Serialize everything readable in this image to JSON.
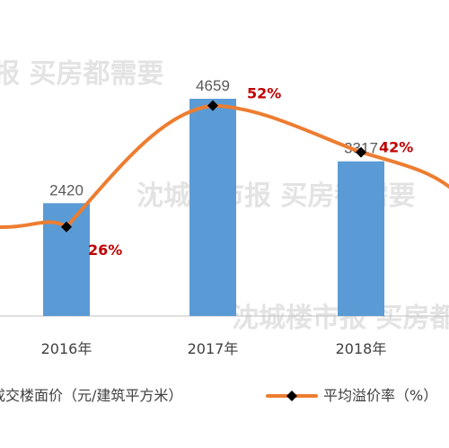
{
  "chart_data": {
    "type": "bar",
    "categories": [
      "2016年",
      "2017年",
      "2018年"
    ],
    "series": [
      {
        "name": "成交楼面价（元/建筑平方米）",
        "type": "bar",
        "values": [
          2420,
          4659,
          3317
        ],
        "labels": [
          "2420",
          "4659",
          "3317"
        ],
        "color": "#5b9bd5"
      },
      {
        "name": "平均溢价率（%）",
        "type": "line",
        "values": [
          26,
          52,
          42
        ],
        "labels": [
          "26%",
          "52%",
          "42%"
        ],
        "color": "#ed7d31",
        "marker": "diamond",
        "marker_color": "#000000"
      }
    ],
    "legend": {
      "placement": "bottom",
      "items": [
        "成交楼面价（元/建筑平方米）",
        "平均溢价率（%）"
      ]
    },
    "watermark": [
      "沈城楼市报",
      "买房都需要"
    ],
    "grid": false
  }
}
